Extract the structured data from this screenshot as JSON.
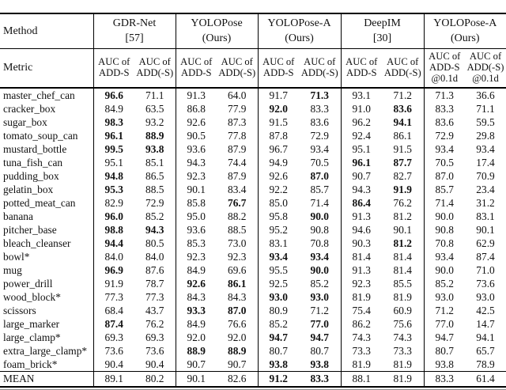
{
  "table": {
    "method_label": "Method",
    "metric_label": "Metric",
    "groups": [
      {
        "line1": "GDR-Net",
        "line2": "[57]",
        "metrics": [
          "AUC of\nADD-S",
          "AUC of\nADD(-S)"
        ]
      },
      {
        "line1": "YOLOPose",
        "line2": "(Ours)",
        "metrics": [
          "AUC of\nADD-S",
          "AUC of\nADD(-S)"
        ]
      },
      {
        "line1": "YOLOPose-A",
        "line2": "(Ours)",
        "metrics": [
          "AUC of\nADD-S",
          "AUC of\nADD(-S)"
        ]
      },
      {
        "line1": "DeepIM",
        "line2": "[30]",
        "metrics": [
          "AUC of\nADD-S",
          "AUC of\nADD(-S)"
        ]
      },
      {
        "line1": "YOLOPose-A",
        "line2": "(Ours)",
        "metrics": [
          "AUC of\nADD-S\n@0.1d",
          "AUC of\nADD(-S)\n@0.1d"
        ]
      }
    ],
    "rows": [
      {
        "name": "master_chef_can",
        "values": [
          "96.6",
          "71.1",
          "91.3",
          "64.0",
          "91.7",
          "71.3",
          "93.1",
          "71.2",
          "71.3",
          "36.6"
        ],
        "bold": [
          0,
          5
        ]
      },
      {
        "name": "cracker_box",
        "values": [
          "84.9",
          "63.5",
          "86.8",
          "77.9",
          "92.0",
          "83.3",
          "91.0",
          "83.6",
          "83.3",
          "71.1"
        ],
        "bold": [
          4,
          7
        ]
      },
      {
        "name": "sugar_box",
        "values": [
          "98.3",
          "93.2",
          "92.6",
          "87.3",
          "91.5",
          "83.6",
          "96.2",
          "94.1",
          "83.6",
          "59.5"
        ],
        "bold": [
          0,
          7
        ]
      },
      {
        "name": "tomato_soup_can",
        "values": [
          "96.1",
          "88.9",
          "90.5",
          "77.8",
          "87.8",
          "72.9",
          "92.4",
          "86.1",
          "72.9",
          "29.8"
        ],
        "bold": [
          0,
          1
        ]
      },
      {
        "name": "mustard_bottle",
        "values": [
          "99.5",
          "93.8",
          "93.6",
          "87.9",
          "96.7",
          "93.4",
          "95.1",
          "91.5",
          "93.4",
          "93.4"
        ],
        "bold": [
          0,
          1
        ]
      },
      {
        "name": "tuna_fish_can",
        "values": [
          "95.1",
          "85.1",
          "94.3",
          "74.4",
          "94.9",
          "70.5",
          "96.1",
          "87.7",
          "70.5",
          "17.4"
        ],
        "bold": [
          6,
          7
        ]
      },
      {
        "name": "pudding_box",
        "values": [
          "94.8",
          "86.5",
          "92.3",
          "87.9",
          "92.6",
          "87.0",
          "90.7",
          "82.7",
          "87.0",
          "70.9"
        ],
        "bold": [
          0,
          5
        ]
      },
      {
        "name": "gelatin_box",
        "values": [
          "95.3",
          "88.5",
          "90.1",
          "83.4",
          "92.2",
          "85.7",
          "94.3",
          "91.9",
          "85.7",
          "23.4"
        ],
        "bold": [
          0,
          7
        ]
      },
      {
        "name": "potted_meat_can",
        "values": [
          "82.9",
          "72.9",
          "85.8",
          "76.7",
          "85.0",
          "71.4",
          "86.4",
          "76.2",
          "71.4",
          "31.2"
        ],
        "bold": [
          3,
          6
        ]
      },
      {
        "name": "banana",
        "values": [
          "96.0",
          "85.2",
          "95.0",
          "88.2",
          "95.8",
          "90.0",
          "91.3",
          "81.2",
          "90.0",
          "83.1"
        ],
        "bold": [
          0,
          5
        ]
      },
      {
        "name": "pitcher_base",
        "values": [
          "98.8",
          "94.3",
          "93.6",
          "88.5",
          "95.2",
          "90.8",
          "94.6",
          "90.1",
          "90.8",
          "90.1"
        ],
        "bold": [
          0,
          1
        ]
      },
      {
        "name": "bleach_cleanser",
        "values": [
          "94.4",
          "80.5",
          "85.3",
          "73.0",
          "83.1",
          "70.8",
          "90.3",
          "81.2",
          "70.8",
          "62.9"
        ],
        "bold": [
          0,
          7
        ]
      },
      {
        "name": "bowl*",
        "values": [
          "84.0",
          "84.0",
          "92.3",
          "92.3",
          "93.4",
          "93.4",
          "81.4",
          "81.4",
          "93.4",
          "87.4"
        ],
        "bold": [
          4,
          5
        ]
      },
      {
        "name": "mug",
        "values": [
          "96.9",
          "87.6",
          "84.9",
          "69.6",
          "95.5",
          "90.0",
          "91.3",
          "81.4",
          "90.0",
          "71.0"
        ],
        "bold": [
          0,
          5
        ]
      },
      {
        "name": "power_drill",
        "values": [
          "91.9",
          "78.7",
          "92.6",
          "86.1",
          "92.5",
          "85.2",
          "92.3",
          "85.5",
          "85.2",
          "73.6"
        ],
        "bold": [
          2,
          3
        ]
      },
      {
        "name": "wood_block*",
        "values": [
          "77.3",
          "77.3",
          "84.3",
          "84.3",
          "93.0",
          "93.0",
          "81.9",
          "81.9",
          "93.0",
          "93.0"
        ],
        "bold": [
          4,
          5
        ]
      },
      {
        "name": "scissors",
        "values": [
          "68.4",
          "43.7",
          "93.3",
          "87.0",
          "80.9",
          "71.2",
          "75.4",
          "60.9",
          "71.2",
          "42.5"
        ],
        "bold": [
          2,
          3
        ]
      },
      {
        "name": "large_marker",
        "values": [
          "87.4",
          "76.2",
          "84.9",
          "76.6",
          "85.2",
          "77.0",
          "86.2",
          "75.6",
          "77.0",
          "14.7"
        ],
        "bold": [
          0,
          5
        ]
      },
      {
        "name": "large_clamp*",
        "values": [
          "69.3",
          "69.3",
          "92.0",
          "92.0",
          "94.7",
          "94.7",
          "74.3",
          "74.3",
          "94.7",
          "94.1"
        ],
        "bold": [
          4,
          5
        ]
      },
      {
        "name": "extra_large_clamp*",
        "values": [
          "73.6",
          "73.6",
          "88.9",
          "88.9",
          "80.7",
          "80.7",
          "73.3",
          "73.3",
          "80.7",
          "65.7"
        ],
        "bold": [
          2,
          3
        ]
      },
      {
        "name": "foam_brick*",
        "values": [
          "90.4",
          "90.4",
          "90.7",
          "90.7",
          "93.8",
          "93.8",
          "81.9",
          "81.9",
          "93.8",
          "78.9"
        ],
        "bold": [
          4,
          5
        ]
      },
      {
        "name": "MEAN",
        "values": [
          "89.1",
          "80.2",
          "90.1",
          "82.6",
          "91.2",
          "83.3",
          "88.1",
          "81.9",
          "83.3",
          "61.4"
        ],
        "bold": [
          4,
          5
        ]
      }
    ]
  }
}
